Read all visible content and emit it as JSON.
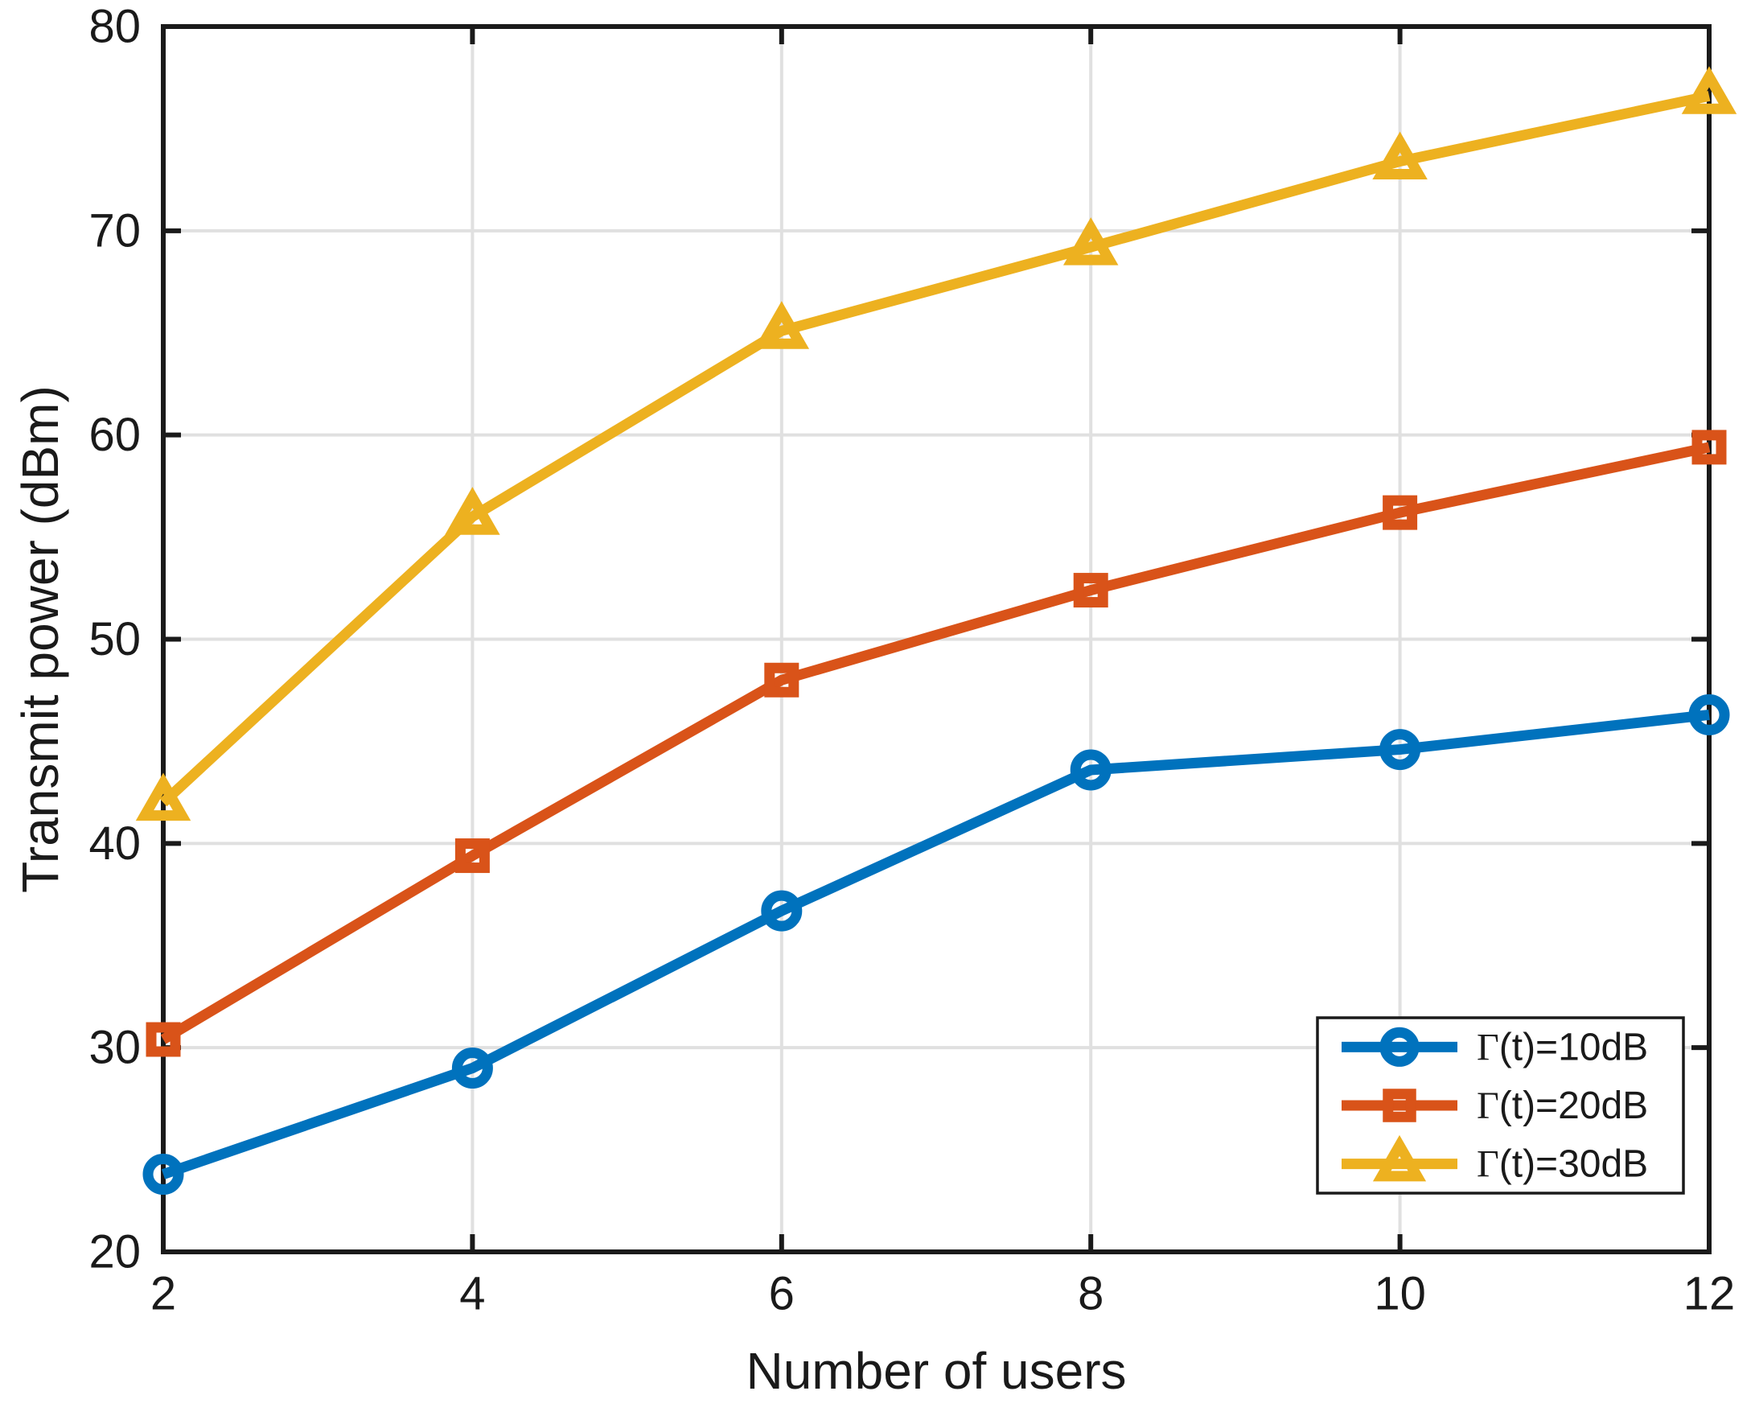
{
  "figure": {
    "background_color": "#ffffff",
    "axis_color": "#1a1a1a",
    "grid_color": "#e0e0e0",
    "legend_border_color": "#1a1a1a",
    "legend_background": "#ffffff"
  },
  "chart_data": {
    "type": "line",
    "title": "",
    "xlabel": "Number of users",
    "ylabel": "Transmit power (dBm)",
    "x": [
      2,
      4,
      6,
      8,
      10,
      12
    ],
    "xlim": [
      2,
      12
    ],
    "ylim": [
      20,
      80
    ],
    "xticks": [
      2,
      4,
      6,
      8,
      10,
      12
    ],
    "xtick_labels": [
      "2",
      "4",
      "6",
      "8",
      "10",
      "12"
    ],
    "yticks": [
      20,
      30,
      40,
      50,
      60,
      70,
      80
    ],
    "ytick_labels": [
      "20",
      "30",
      "40",
      "50",
      "60",
      "70",
      "80"
    ],
    "grid": true,
    "legend_position": "bottom-right",
    "series": [
      {
        "name": "Γ(t)=10dB",
        "color": "#0072BD",
        "marker": "circle",
        "values": [
          23.8,
          29.0,
          36.7,
          43.6,
          44.6,
          46.3
        ]
      },
      {
        "name": "Γ(t)=20dB",
        "color": "#D95319",
        "marker": "square",
        "values": [
          30.4,
          39.4,
          48.0,
          52.4,
          56.2,
          59.4
        ]
      },
      {
        "name": "Γ(t)=30dB",
        "color": "#EDB120",
        "marker": "triangle",
        "values": [
          42.0,
          56.0,
          65.1,
          69.2,
          73.4,
          76.6
        ]
      }
    ]
  }
}
